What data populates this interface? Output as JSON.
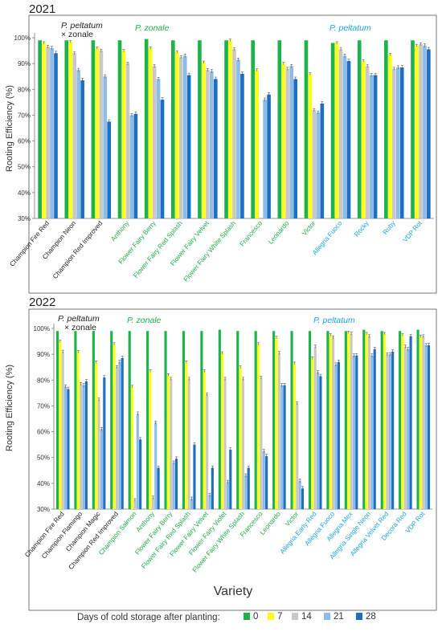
{
  "common": {
    "ylabel": "Rooting Efficiency (%)",
    "xlabel": "Variety",
    "legend_title": "Days of cold storage after planting:",
    "legend": [
      {
        "label": "0",
        "color": "#1db34a"
      },
      {
        "label": "7",
        "color": "#ffff1a"
      },
      {
        "label": "14",
        "color": "#c8c8c8"
      },
      {
        "label": "21",
        "color": "#8cbde8"
      },
      {
        "label": "28",
        "color": "#1f6fc0"
      }
    ],
    "group_labels": {
      "hybrid_line1": "P. peltatum",
      "hybrid_line2": "× zonale",
      "zonale": "P. zonale",
      "peltatum": "P. peltatum"
    },
    "label_colors": {
      "hybrid": "#222222",
      "zonale": "#1fae4a",
      "peltatum": "#1aa6d8"
    }
  },
  "chart_data": [
    {
      "type": "bar",
      "title": "2021",
      "ylabel": "Rooting Efficiency (%)",
      "ylim": [
        30,
        100
      ],
      "yticks": [
        "30%",
        "40%",
        "50%",
        "60%",
        "70%",
        "80%",
        "90%",
        "100%"
      ],
      "series_names": [
        "0",
        "7",
        "14",
        "21",
        "28"
      ],
      "categories": [
        {
          "name": "Champion Fire Red",
          "group": "hybrid",
          "values": [
            99,
            98,
            96.5,
            96,
            94
          ]
        },
        {
          "name": "Champion Neon",
          "group": "hybrid",
          "values": [
            99,
            98.5,
            94,
            87.5,
            83.5
          ]
        },
        {
          "name": "Champion Red Improved",
          "group": "hybrid",
          "values": [
            99,
            96,
            95,
            85,
            67.5
          ]
        },
        {
          "name": "Anthony",
          "group": "zonale",
          "values": [
            99,
            95,
            90,
            70,
            70.5
          ]
        },
        {
          "name": "Flower Fairy Berry",
          "group": "zonale",
          "values": [
            99.5,
            96,
            89,
            84,
            76
          ]
        },
        {
          "name": "Flower Fairy Red Splash",
          "group": "zonale",
          "values": [
            99,
            94.5,
            92.5,
            93,
            85.5
          ]
        },
        {
          "name": "Flower Fairy Velvet",
          "group": "zonale",
          "values": [
            99,
            90.5,
            87.5,
            87,
            84
          ]
        },
        {
          "name": "Flower Fairy White Splash",
          "group": "zonale",
          "values": [
            99,
            99,
            95.5,
            91.5,
            86
          ]
        },
        {
          "name": "Francesco",
          "group": "zonale",
          "values": [
            99,
            87.5,
            null,
            76,
            78
          ]
        },
        {
          "name": "Leonardo",
          "group": "zonale",
          "values": [
            99,
            90,
            88,
            89,
            84
          ]
        },
        {
          "name": "Victor",
          "group": "zonale",
          "values": [
            99,
            86,
            72,
            71,
            74.5
          ]
        },
        {
          "name": "Allegria Fuoco",
          "group": "peltatum",
          "values": [
            98,
            98,
            95.5,
            93,
            91
          ]
        },
        {
          "name": "Rocky",
          "group": "peltatum",
          "values": [
            99,
            91,
            89,
            85.5,
            85.5
          ]
        },
        {
          "name": "Ruby",
          "group": "peltatum",
          "values": [
            99,
            93.5,
            88,
            88.5,
            88.5
          ]
        },
        {
          "name": "VDP Rot",
          "group": "peltatum",
          "values": [
            99,
            97,
            97.5,
            97,
            95.5
          ]
        }
      ]
    },
    {
      "type": "bar",
      "title": "2022",
      "ylabel": "Rooting Efficiency (%)",
      "ylim": [
        30,
        100
      ],
      "yticks": [
        "30%",
        "40%",
        "50%",
        "60%",
        "70%",
        "80%",
        "90%",
        "100%"
      ],
      "series_names": [
        "0",
        "7",
        "14",
        "21",
        "28"
      ],
      "categories": [
        {
          "name": "Champion Fire Red",
          "group": "hybrid",
          "values": [
            99,
            95,
            91,
            77.5,
            76.5
          ]
        },
        {
          "name": "Champion Flamingo",
          "group": "hybrid",
          "values": [
            99,
            91,
            78.5,
            78,
            79.5
          ]
        },
        {
          "name": "Champion Magic",
          "group": "hybrid",
          "values": [
            99,
            87,
            72.5,
            61,
            81
          ]
        },
        {
          "name": "Champion Red Improved",
          "group": "hybrid",
          "values": [
            99,
            94,
            85,
            87,
            88.5
          ]
        },
        {
          "name": "Champion Salmon",
          "group": "zonale",
          "values": [
            99,
            77.5,
            33.5,
            67,
            57
          ]
        },
        {
          "name": "Anthony",
          "group": "zonale",
          "values": [
            99,
            83.5,
            34.5,
            63.5,
            46
          ]
        },
        {
          "name": "Flower Fairy Berry",
          "group": "zonale",
          "values": [
            99,
            82,
            80.5,
            48,
            49.5
          ]
        },
        {
          "name": "Flower Fairy Red Splash",
          "group": "zonale",
          "values": [
            99,
            87,
            80.5,
            34,
            55
          ]
        },
        {
          "name": "Flower Fairy Velvet",
          "group": "zonale",
          "values": [
            99,
            83.5,
            74.5,
            35.5,
            46
          ]
        },
        {
          "name": "Flower Fairy Violet",
          "group": "zonale",
          "values": [
            99.5,
            90.5,
            80.5,
            40.5,
            53
          ]
        },
        {
          "name": "Flower Fairy White Splash",
          "group": "zonale",
          "values": [
            99,
            85,
            80.5,
            43,
            46
          ]
        },
        {
          "name": "Francesco",
          "group": "zonale",
          "values": [
            99,
            94,
            81,
            52.5,
            50.5
          ]
        },
        {
          "name": "Leonardo",
          "group": "zonale",
          "values": [
            99,
            96.5,
            90.5,
            78,
            78
          ]
        },
        {
          "name": "Victor",
          "group": "zonale",
          "values": [
            99,
            86.5,
            71,
            41,
            38
          ]
        },
        {
          "name": "Allegria Early Red",
          "group": "peltatum",
          "values": [
            99,
            88.5,
            93,
            83,
            81.5
          ]
        },
        {
          "name": "Allegria Fuoco",
          "group": "peltatum",
          "values": [
            99,
            97.5,
            96.5,
            86,
            87
          ]
        },
        {
          "name": "Allegria Mex",
          "group": "peltatum",
          "values": [
            99,
            98.5,
            98,
            89.5,
            89.5
          ]
        },
        {
          "name": "Allegria Single Neon",
          "group": "peltatum",
          "values": [
            99.5,
            98,
            97,
            89.5,
            92
          ]
        },
        {
          "name": "Allegria Velvet Red",
          "group": "peltatum",
          "values": [
            99,
            98,
            90,
            90,
            91
          ]
        },
        {
          "name": "Decora Red",
          "group": "peltatum",
          "values": [
            99,
            97.5,
            93,
            92,
            97
          ]
        },
        {
          "name": "VDP Rot",
          "group": "peltatum",
          "values": [
            99.5,
            97,
            97,
            93.5,
            93.5
          ]
        }
      ]
    }
  ]
}
